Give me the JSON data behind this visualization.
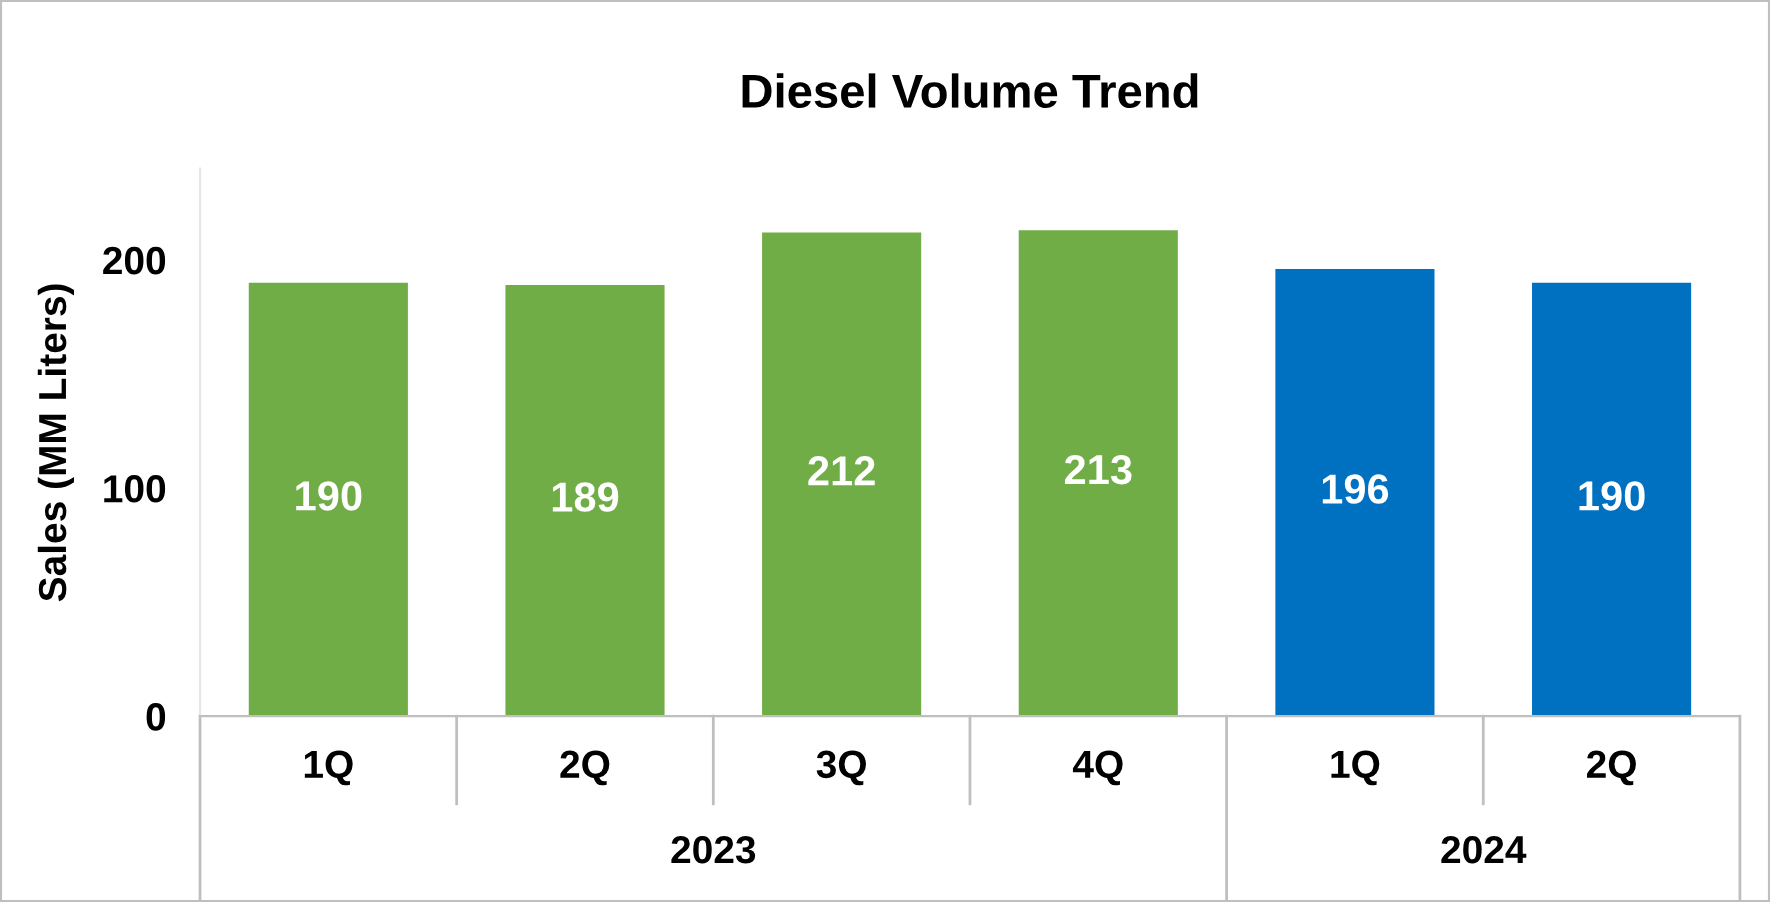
{
  "chart_data": {
    "type": "bar",
    "title": "Diesel Volume Trend",
    "ylabel": "Sales (MM Liters)",
    "categories": [
      "1Q",
      "2Q",
      "3Q",
      "4Q",
      "1Q",
      "2Q"
    ],
    "series": [
      {
        "color": "#70ad47",
        "values": [
          190,
          189,
          212,
          213,
          null,
          null
        ]
      },
      {
        "color": "#0070c0",
        "values": [
          null,
          null,
          null,
          null,
          196,
          190
        ]
      }
    ],
    "ylim": [
      0,
      240
    ],
    "yticks": [
      0,
      100,
      200
    ],
    "grid": false,
    "data_labels": true,
    "annotations": [
      "2023",
      "2024"
    ]
  }
}
